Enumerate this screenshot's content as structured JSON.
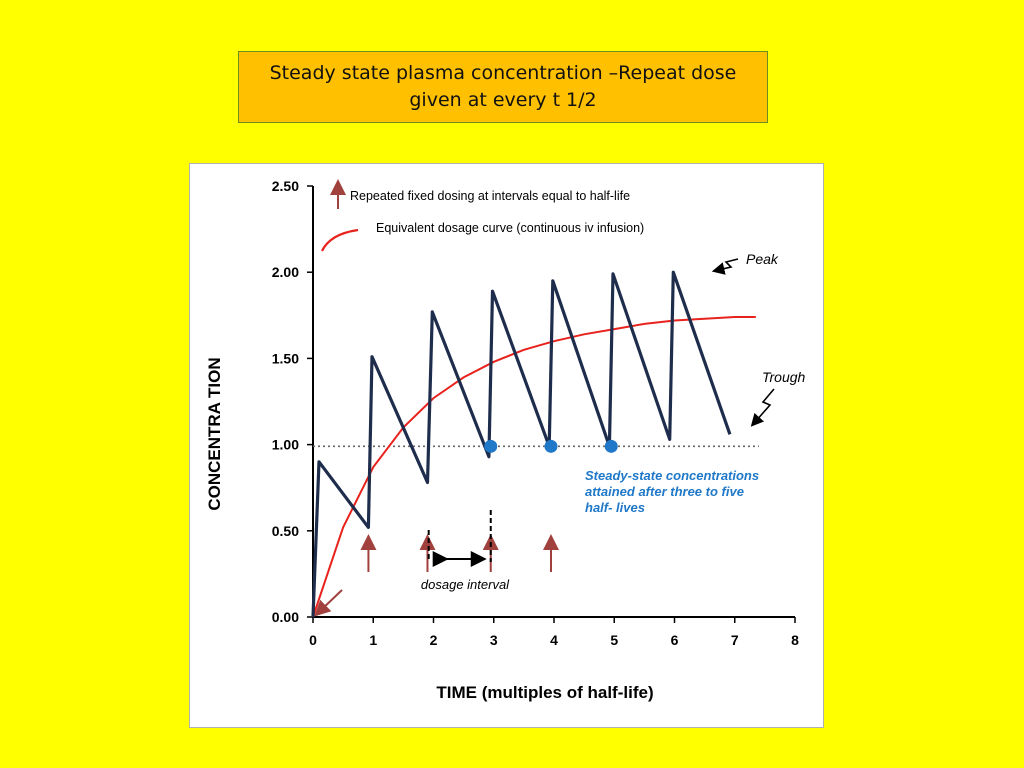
{
  "slide_title": {
    "line1": "Steady state plasma concentration –Repeat dose",
    "line2": "given at every t 1/2"
  },
  "colors": {
    "background": "#FFFF00",
    "title_box": "#FFC000",
    "dosing_curve": "#1f2d4d",
    "infusion_curve": "#e8231d",
    "arrow": "#a0413d",
    "steady_state_text": "#1f78c8",
    "steady_state_dot": "#1f78c8"
  },
  "chart_data": {
    "type": "line",
    "xlabel": "TIME (multiples of half-life)",
    "ylabel": "CONCENTRA TION",
    "xlim": [
      0,
      8
    ],
    "ylim": [
      0,
      2.5
    ],
    "x_ticks": [
      "0",
      "1",
      "2",
      "3",
      "4",
      "5",
      "6",
      "7",
      "8"
    ],
    "y_ticks": [
      "0.00",
      "0.50",
      "1.00",
      "1.50",
      "2.00",
      "2.50"
    ],
    "legend": {
      "placement": "top-left",
      "dosing_label": "Repeated fixed dosing at intervals equal to half-life",
      "infusion_label": "Equivalent dosage curve (continuous iv infusion)"
    },
    "series": [
      {
        "name": "Repeated fixed dosing at intervals equal to half-life",
        "points": [
          [
            0,
            0
          ],
          [
            0.1,
            0.9
          ],
          [
            0.92,
            0.52
          ],
          [
            0.98,
            1.51
          ],
          [
            1.9,
            0.78
          ],
          [
            1.98,
            1.77
          ],
          [
            2.92,
            0.93
          ],
          [
            2.98,
            1.89
          ],
          [
            3.92,
            0.99
          ],
          [
            3.98,
            1.95
          ],
          [
            4.92,
            0.99
          ],
          [
            4.98,
            1.99
          ],
          [
            5.92,
            1.03
          ],
          [
            5.98,
            2.0
          ],
          [
            6.92,
            1.06
          ]
        ]
      },
      {
        "name": "Equivalent dosage curve (continuous iv infusion)",
        "points": [
          [
            0,
            0
          ],
          [
            0.5,
            0.52
          ],
          [
            1,
            0.87
          ],
          [
            1.5,
            1.1
          ],
          [
            2,
            1.27
          ],
          [
            2.5,
            1.39
          ],
          [
            3,
            1.48
          ],
          [
            3.5,
            1.55
          ],
          [
            4,
            1.6
          ],
          [
            4.5,
            1.64
          ],
          [
            5,
            1.67
          ],
          [
            5.5,
            1.7
          ],
          [
            6,
            1.72
          ],
          [
            6.5,
            1.73
          ],
          [
            7,
            1.74
          ],
          [
            7.35,
            1.74
          ]
        ]
      }
    ],
    "steady_state_line": {
      "y": 0.99,
      "x_range": [
        0,
        7.4
      ]
    },
    "steady_state_points": [
      [
        2.95,
        0.99
      ],
      [
        3.95,
        0.99
      ],
      [
        4.95,
        0.99
      ]
    ],
    "dose_arrows_x": [
      0.92,
      1.9,
      2.95,
      3.95
    ],
    "dosage_interval": {
      "from": 1.92,
      "to": 2.95,
      "label": "dosage interval"
    },
    "annotations": {
      "peak": "Peak",
      "trough": "Trough",
      "steady_state_1": "Steady-state concentrations",
      "steady_state_2": "attained after three to five",
      "steady_state_3": "half- lives"
    }
  }
}
